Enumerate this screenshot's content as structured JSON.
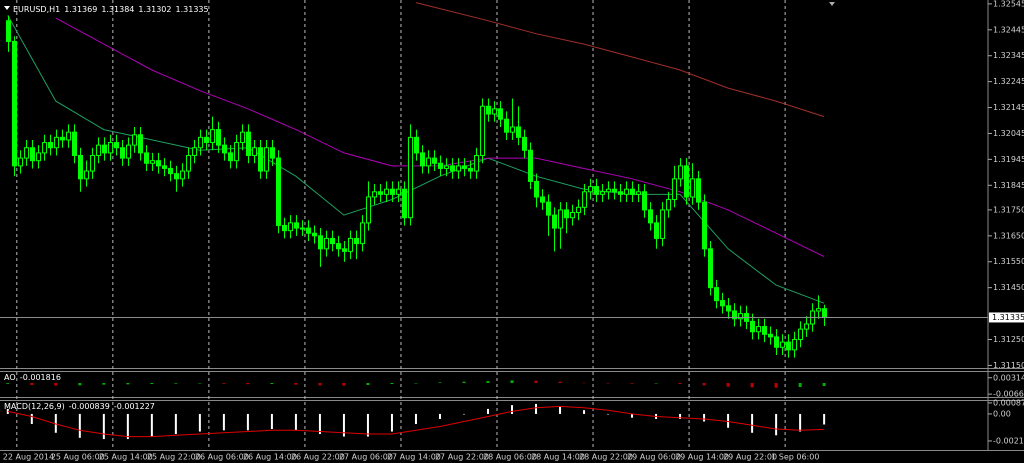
{
  "chart_data": [
    {
      "type": "candlestick",
      "title": "EURUSD,H1",
      "xlim": [
        -1.3,
        163.3
      ],
      "ylim": [
        1.3114,
        1.3256
      ],
      "open": [
        1.3248,
        1.324,
        1.3192,
        1.3195,
        1.3199,
        1.3194,
        1.3197,
        1.3201,
        1.3199,
        1.3203,
        1.3202,
        1.3205,
        1.3196,
        1.3187,
        1.319,
        1.3196,
        1.32,
        1.3197,
        1.3201,
        1.3199,
        1.3195,
        1.32,
        1.3204,
        1.3197,
        1.3193,
        1.3194,
        1.3192,
        1.3191,
        1.3189,
        1.3187,
        1.319,
        1.3196,
        1.3199,
        1.3203,
        1.3201,
        1.3206,
        1.32,
        1.3197,
        1.3194,
        1.3201,
        1.3205,
        1.3196,
        1.3199,
        1.319,
        1.3199,
        1.3195,
        1.3169,
        1.3167,
        1.317,
        1.3168,
        1.3168,
        1.3166,
        1.3165,
        1.316,
        1.3164,
        1.3162,
        1.316,
        1.3159,
        1.3164,
        1.3162,
        1.317,
        1.318,
        1.3182,
        1.3181,
        1.3183,
        1.3181,
        1.3183,
        1.3172,
        1.3203,
        1.3197,
        1.3192,
        1.3195,
        1.3193,
        1.3191,
        1.3192,
        1.319,
        1.3192,
        1.3191,
        1.319,
        1.3196,
        1.3215,
        1.3212,
        1.3214,
        1.321,
        1.3205,
        1.3207,
        1.3203,
        1.3198,
        1.3186,
        1.318,
        1.3178,
        1.3173,
        1.3168,
        1.3175,
        1.3172,
        1.3174,
        1.3176,
        1.3182,
        1.3184,
        1.3181,
        1.3182,
        1.3183,
        1.3182,
        1.3181,
        1.3183,
        1.3181,
        1.3182,
        1.3175,
        1.317,
        1.3164,
        1.3175,
        1.3179,
        1.3187,
        1.3192,
        1.318,
        1.3187,
        1.3178,
        1.316,
        1.3145,
        1.314,
        1.3138,
        1.3136,
        1.3133,
        1.3135,
        1.3132,
        1.3128,
        1.313,
        1.3127,
        1.3126,
        1.3122,
        1.3124,
        1.3121,
        1.3125,
        1.3129,
        1.3131,
        1.3136,
        1.31369
      ],
      "high": [
        1.325,
        1.3242,
        1.3198,
        1.3202,
        1.3202,
        1.32,
        1.3204,
        1.3204,
        1.3206,
        1.3206,
        1.3208,
        1.3208,
        1.3199,
        1.3194,
        1.3199,
        1.3203,
        1.3203,
        1.3204,
        1.3204,
        1.3202,
        1.3203,
        1.3207,
        1.3207,
        1.32,
        1.3197,
        1.3197,
        1.3195,
        1.3194,
        1.3192,
        1.3193,
        1.3199,
        1.3202,
        1.3206,
        1.3206,
        1.3211,
        1.3209,
        1.3203,
        1.32,
        1.3204,
        1.3208,
        1.3208,
        1.3202,
        1.3202,
        1.3202,
        1.3202,
        1.3198,
        1.3172,
        1.3173,
        1.3173,
        1.3171,
        1.3171,
        1.3169,
        1.3168,
        1.3167,
        1.3167,
        1.3165,
        1.3163,
        1.3167,
        1.3167,
        1.3173,
        1.3186,
        1.3185,
        1.3185,
        1.3186,
        1.3186,
        1.3186,
        1.3186,
        1.3208,
        1.3206,
        1.32,
        1.3198,
        1.3198,
        1.3196,
        1.3195,
        1.3195,
        1.3195,
        1.3195,
        1.3194,
        1.3199,
        1.3218,
        1.3218,
        1.3217,
        1.3217,
        1.3213,
        1.3218,
        1.3215,
        1.3206,
        1.3201,
        1.3189,
        1.3183,
        1.3181,
        1.3176,
        1.3178,
        1.3178,
        1.3177,
        1.3179,
        1.3185,
        1.3187,
        1.3187,
        1.3185,
        1.3186,
        1.3186,
        1.3185,
        1.3186,
        1.3186,
        1.3185,
        1.3185,
        1.3178,
        1.3173,
        1.3178,
        1.3182,
        1.3192,
        1.3195,
        1.3195,
        1.3193,
        1.319,
        1.3181,
        1.3163,
        1.3148,
        1.3143,
        1.3141,
        1.3139,
        1.3138,
        1.3138,
        1.3135,
        1.3133,
        1.3133,
        1.313,
        1.3129,
        1.3127,
        1.3127,
        1.3128,
        1.3132,
        1.3134,
        1.3139,
        1.3142,
        1.31384
      ],
      "low": [
        1.3236,
        1.3188,
        1.3189,
        1.3192,
        1.3191,
        1.3191,
        1.3194,
        1.3196,
        1.3196,
        1.3199,
        1.3199,
        1.3193,
        1.3182,
        1.3184,
        1.3187,
        1.3193,
        1.3194,
        1.3194,
        1.3196,
        1.3192,
        1.3192,
        1.3197,
        1.3194,
        1.319,
        1.319,
        1.3189,
        1.3188,
        1.3186,
        1.3182,
        1.3184,
        1.3187,
        1.3193,
        1.3196,
        1.3198,
        1.3198,
        1.3197,
        1.3194,
        1.3191,
        1.3191,
        1.3198,
        1.3193,
        1.3193,
        1.3187,
        1.3187,
        1.3192,
        1.3166,
        1.3164,
        1.3164,
        1.3165,
        1.3165,
        1.3163,
        1.3162,
        1.3153,
        1.3157,
        1.3159,
        1.3157,
        1.3155,
        1.3156,
        1.3156,
        1.3159,
        1.3167,
        1.3177,
        1.3178,
        1.3178,
        1.3178,
        1.3178,
        1.3169,
        1.3169,
        1.3194,
        1.3189,
        1.3189,
        1.319,
        1.3188,
        1.3188,
        1.3187,
        1.3187,
        1.3188,
        1.3187,
        1.3187,
        1.3193,
        1.3209,
        1.3209,
        1.3207,
        1.3202,
        1.3202,
        1.32,
        1.3195,
        1.3183,
        1.3176,
        1.3175,
        1.3165,
        1.3159,
        1.316,
        1.3166,
        1.3169,
        1.3171,
        1.3173,
        1.3179,
        1.3178,
        1.3178,
        1.3179,
        1.3179,
        1.3178,
        1.3178,
        1.3178,
        1.3178,
        1.3172,
        1.3167,
        1.316,
        1.3161,
        1.3172,
        1.3176,
        1.3184,
        1.3177,
        1.3177,
        1.3175,
        1.3157,
        1.3142,
        1.3137,
        1.3135,
        1.3133,
        1.313,
        1.313,
        1.3129,
        1.3125,
        1.3125,
        1.3124,
        1.3123,
        1.3119,
        1.3119,
        1.3118,
        1.3118,
        1.3122,
        1.3126,
        1.3128,
        1.3133,
        1.31302
      ],
      "close": [
        1.324,
        1.3192,
        1.3195,
        1.3199,
        1.3194,
        1.3197,
        1.3201,
        1.3199,
        1.3203,
        1.3202,
        1.3205,
        1.3196,
        1.3187,
        1.319,
        1.3196,
        1.32,
        1.3197,
        1.3201,
        1.3199,
        1.3195,
        1.32,
        1.3204,
        1.3197,
        1.3193,
        1.3194,
        1.3192,
        1.3191,
        1.3189,
        1.3187,
        1.319,
        1.3196,
        1.3199,
        1.3203,
        1.3201,
        1.3206,
        1.32,
        1.3197,
        1.3194,
        1.3201,
        1.3205,
        1.3196,
        1.3199,
        1.319,
        1.3199,
        1.3195,
        1.3169,
        1.3167,
        1.317,
        1.3168,
        1.3168,
        1.3166,
        1.3165,
        1.316,
        1.3164,
        1.3162,
        1.316,
        1.3159,
        1.3164,
        1.3162,
        1.317,
        1.318,
        1.3182,
        1.3181,
        1.3183,
        1.3181,
        1.3183,
        1.3172,
        1.3203,
        1.3197,
        1.3192,
        1.3195,
        1.3193,
        1.3191,
        1.3192,
        1.319,
        1.3192,
        1.3191,
        1.319,
        1.3196,
        1.3215,
        1.3212,
        1.3214,
        1.321,
        1.3205,
        1.3207,
        1.3203,
        1.3198,
        1.3186,
        1.318,
        1.3178,
        1.3173,
        1.3168,
        1.3175,
        1.3172,
        1.3174,
        1.3176,
        1.3182,
        1.3184,
        1.3181,
        1.3182,
        1.3183,
        1.3182,
        1.3181,
        1.3183,
        1.3181,
        1.3182,
        1.3175,
        1.317,
        1.3164,
        1.3175,
        1.3179,
        1.3187,
        1.3192,
        1.318,
        1.3187,
        1.3178,
        1.316,
        1.3145,
        1.314,
        1.3138,
        1.3136,
        1.3133,
        1.3135,
        1.3132,
        1.3128,
        1.313,
        1.3127,
        1.3126,
        1.3122,
        1.3124,
        1.3121,
        1.3125,
        1.3129,
        1.3131,
        1.3136,
        1.31369,
        1.31335
      ],
      "candle_color": "#00ff00",
      "yticks": [
        1.32545,
        1.32445,
        1.32345,
        1.32245,
        1.32145,
        1.32045,
        1.31945,
        1.31845,
        {
          "value": 1.3175,
          "label": "1.31750"
        },
        {
          "value": 1.3165,
          "label": "1.31650"
        },
        {
          "value": 1.3155,
          "label": "1.31550"
        },
        {
          "value": 1.3145,
          "label": "1.31450"
        },
        {
          "value": 1.3125,
          "label": "1.31250"
        },
        {
          "value": 1.3115,
          "label": "1.31150"
        }
      ],
      "xticks": [
        {
          "value": 0,
          "label": "22 Aug 2014"
        },
        {
          "value": 8,
          "label": "25 Aug 06:00"
        },
        {
          "value": 16,
          "label": "25 Aug 14:00"
        },
        {
          "value": 24,
          "label": "25 Aug 22:00"
        },
        {
          "value": 32,
          "label": "26 Aug 06:00"
        },
        {
          "value": 40,
          "label": "26 Aug 14:00"
        },
        {
          "value": 48,
          "label": "26 Aug 22:00"
        },
        {
          "value": 56,
          "label": "27 Aug 06:00"
        },
        {
          "value": 64,
          "label": "27 Aug 14:00"
        },
        {
          "value": 72,
          "label": "27 Aug 22:00"
        },
        {
          "value": 80,
          "label": "28 Aug 06:00"
        },
        {
          "value": 88,
          "label": "28 Aug 14:00"
        },
        {
          "value": 96,
          "label": "28 Aug 22:00"
        },
        {
          "value": 104,
          "label": "29 Aug 06:00"
        },
        {
          "value": 112,
          "label": "29 Aug 14:00"
        },
        {
          "value": 120,
          "label": "29 Aug 22:00"
        },
        {
          "value": 128,
          "label": "1 Sep 06:00"
        }
      ],
      "grid": true,
      "series": [
        {
          "color": "#20a060",
          "x": [
            0,
            8,
            16,
            24,
            32,
            40,
            48,
            56,
            64,
            72,
            80,
            88,
            96,
            104,
            112,
            120,
            128,
            136
          ],
          "values": [
            1.325,
            1.3217,
            1.3206,
            1.3202,
            1.3198,
            1.3199,
            1.3188,
            1.3173,
            1.3179,
            1.3188,
            1.3195,
            1.3188,
            1.3183,
            1.3181,
            1.3181,
            1.316,
            1.3146,
            1.3139
          ]
        },
        {
          "color": "#b000b8",
          "x": [
            8,
            16,
            24,
            32,
            40,
            48,
            56,
            64,
            72,
            80,
            88,
            96,
            104,
            112,
            120,
            128,
            136
          ],
          "values": [
            1.3249,
            1.3239,
            1.3229,
            1.3221,
            1.3214,
            1.3206,
            1.3197,
            1.3192,
            1.3192,
            1.3195,
            1.3195,
            1.3191,
            1.3187,
            1.3182,
            1.3175,
            1.3166,
            1.3157
          ]
        },
        {
          "color": "#a0302a",
          "x": [
            68,
            80,
            88,
            96,
            104,
            112,
            120,
            128,
            136
          ],
          "values": [
            1.3255,
            1.3248,
            1.3243,
            1.3239,
            1.3234,
            1.3229,
            1.3222,
            1.3217,
            1.3211
          ]
        }
      ]
    },
    {
      "type": "bar",
      "title": "AO",
      "xlim": [
        -1.3,
        163.3
      ],
      "ylim": [
        -0.0084,
        0.0072
      ],
      "yticks": [
        0.003144,
        -0.006655
      ],
      "up_color": "#00b000",
      "down_color": "#c00000",
      "x": [
        0,
        4,
        8,
        12,
        16,
        20,
        24,
        28,
        32,
        36,
        40,
        44,
        48,
        52,
        56,
        60,
        64,
        68,
        72,
        76,
        80,
        84,
        88,
        92,
        96,
        100,
        104,
        108,
        112,
        116,
        120,
        124,
        128,
        132,
        136
      ],
      "values": [
        -0.0005,
        -0.0012,
        -0.0016,
        -0.0014,
        -0.001,
        -0.0008,
        -0.0006,
        -0.0004,
        -0.0003,
        -0.0005,
        -0.0007,
        -0.0006,
        -0.001,
        -0.0014,
        -0.0016,
        -0.0012,
        -0.0006,
        0.0,
        0.0004,
        0.0008,
        0.0012,
        0.0016,
        0.0014,
        0.0008,
        0.0002,
        -0.0002,
        -0.0004,
        -0.0003,
        -0.0006,
        -0.0014,
        -0.0022,
        -0.0026,
        -0.0028,
        -0.0024,
        -0.001816
      ]
    },
    {
      "type": "bar",
      "title": "MACD(12,26,9)",
      "xlim": [
        -1.3,
        163.3
      ],
      "ylim": [
        -0.00287,
        0.00111
      ],
      "yticks": [
        0.000878,
        {
          "value": 0,
          "label": "0.00"
        },
        -0.00215
      ],
      "x": [
        0,
        4,
        8,
        12,
        16,
        20,
        24,
        28,
        32,
        36,
        40,
        44,
        48,
        52,
        56,
        60,
        64,
        68,
        72,
        76,
        80,
        84,
        88,
        92,
        96,
        100,
        104,
        108,
        112,
        116,
        120,
        124,
        128,
        132,
        136
      ],
      "series": [
        {
          "type": "bar",
          "color": "#ffffff",
          "values": [
            0.0004,
            -0.0008,
            -0.0015,
            -0.0019,
            -0.002,
            -0.002,
            -0.0018,
            -0.0016,
            -0.0014,
            -0.0013,
            -0.0013,
            -0.0012,
            -0.0013,
            -0.0016,
            -0.0018,
            -0.0018,
            -0.0014,
            -0.0008,
            -0.0004,
            0.0,
            0.0004,
            0.0007,
            0.0008,
            0.0006,
            0.0003,
            0.0,
            -0.0003,
            -0.0004,
            -0.0004,
            -0.0006,
            -0.0011,
            -0.0015,
            -0.0017,
            -0.0014,
            -0.000839
          ]
        },
        {
          "type": "line",
          "color": "#e00000",
          "values": [
            0.0002,
            -0.0002,
            -0.0008,
            -0.0013,
            -0.0016,
            -0.0018,
            -0.0018,
            -0.0017,
            -0.0016,
            -0.0015,
            -0.0014,
            -0.0013,
            -0.0013,
            -0.0014,
            -0.0015,
            -0.0016,
            -0.0016,
            -0.0013,
            -0.001,
            -0.0006,
            -0.0002,
            0.0002,
            0.0005,
            0.0006,
            0.0005,
            0.0003,
            0.0,
            -0.0002,
            -0.0003,
            -0.0004,
            -0.0006,
            -0.0009,
            -0.0012,
            -0.0013,
            -0.001227
          ]
        }
      ]
    }
  ]
}
